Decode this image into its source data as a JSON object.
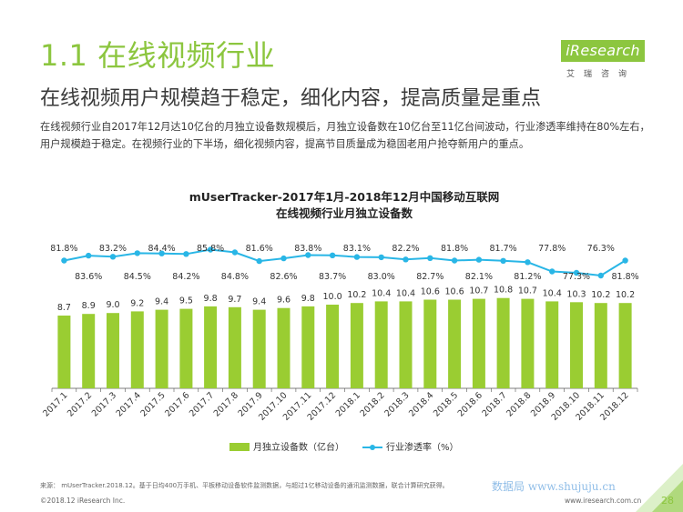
{
  "header": {
    "title": "1.1 在线视频行业",
    "subtitle": "在线视频用户规模趋于稳定，细化内容，提高质量是重点",
    "description": "在线视频行业自2017年12月达10亿台的月独立设备数规模后，月独立设备数在10亿台至11亿台间波动，行业渗透率维持在80%左右，用户规模趋于稳定。在视频行业的下半场，细化视频内容，提高节目质量成为稳固老用户抢夺新用户的重点。"
  },
  "logo": {
    "text": "iResearch",
    "sub": "艾瑞咨询"
  },
  "chart_data": {
    "type": "bar",
    "title_line1": "mUserTracker-2017年1月-2018年12月中国移动互联网",
    "title_line2": "在线视频行业月独立设备数",
    "categories": [
      "2017.1",
      "2017.2",
      "2017.3",
      "2017.4",
      "2017.5",
      "2017.6",
      "2017.7",
      "2017.8",
      "2017.9",
      "2017.10",
      "2017.11",
      "2017.12",
      "2018.1",
      "2018.2",
      "2018.3",
      "2018.4",
      "2018.5",
      "2018.6",
      "2018.7",
      "2018.8",
      "2018.9",
      "2018.10",
      "2018.11",
      "2018.12"
    ],
    "series": [
      {
        "name": "月独立设备数（亿台）",
        "type": "bar",
        "color": "#9acd32",
        "values": [
          8.7,
          8.9,
          9.0,
          9.2,
          9.4,
          9.5,
          9.8,
          9.7,
          9.4,
          9.6,
          9.8,
          10.0,
          10.2,
          10.4,
          10.4,
          10.6,
          10.6,
          10.7,
          10.8,
          10.7,
          10.4,
          10.3,
          10.2,
          10.2
        ]
      },
      {
        "name": "行业渗透率（%）",
        "type": "line",
        "color": "#29b6e6",
        "values": [
          81.8,
          83.6,
          83.2,
          84.5,
          84.4,
          84.2,
          85.8,
          84.8,
          81.6,
          82.6,
          83.8,
          83.7,
          83.1,
          83.0,
          82.2,
          82.7,
          81.8,
          82.1,
          81.7,
          81.2,
          77.8,
          77.3,
          76.3,
          81.8
        ],
        "labels": [
          "81.8%",
          "83.6%",
          "83.2%",
          "84.5%",
          "84.4%",
          "84.2%",
          "85.8%",
          "84.8%",
          "81.6%",
          "82.6%",
          "83.8%",
          "83.7%",
          "83.1%",
          "83.0%",
          "82.2%",
          "82.7%",
          "81.8%",
          "82.1%",
          "81.7%",
          "81.2%",
          "77.8%",
          "77.3%",
          "76.3%",
          "81.8%"
        ]
      }
    ],
    "bar_labels": [
      "8.7",
      "8.9",
      "9.0",
      "9.2",
      "9.4",
      "9.5",
      "9.8",
      "9.7",
      "9.4",
      "9.6",
      "9.8",
      "10.0",
      "10.2",
      "10.4",
      "10.4",
      "10.6",
      "10.6",
      "10.7",
      "10.8",
      "10.7",
      "10.4",
      "10.3",
      "10.2",
      "10.2"
    ],
    "grid": false
  },
  "footer": {
    "source": "来源：  mUserTracker.2018.12。基于日均400万手机、平板移动设备软件监测数据，与超过1亿移动设备的通讯监测数据，联合计算研究获得。",
    "copyright": "©2018.12 iResearch Inc.",
    "url": "www.iresearch.com.cn",
    "page": "28",
    "watermark": "数据局 www.shujuju.cn"
  }
}
